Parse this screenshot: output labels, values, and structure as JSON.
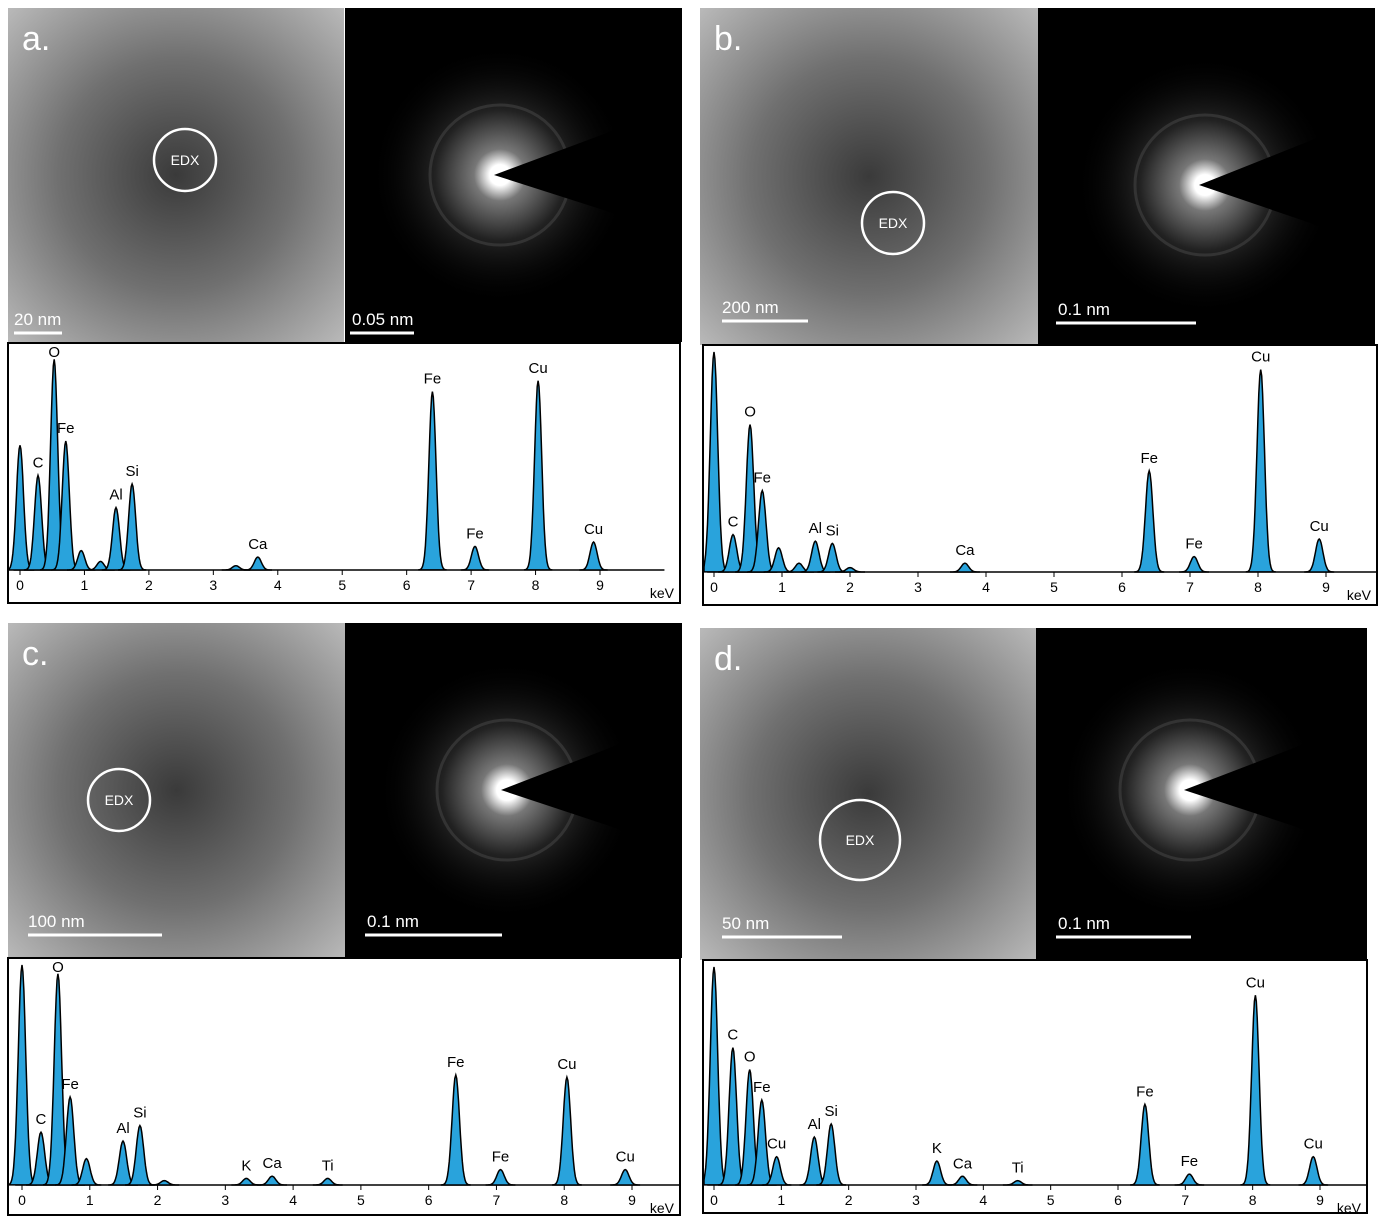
{
  "chart_data": [
    {
      "type": "spectrum",
      "panel": "a.",
      "edx": "EDX",
      "tem_scale": "20 nm",
      "saed_scale": "0.05 nm",
      "x_label": "keV",
      "color": "#29a3dc",
      "xlim": [
        -0.1,
        10
      ],
      "xticks": [
        0,
        1,
        2,
        3,
        4,
        5,
        6,
        7,
        8,
        9
      ],
      "ylim": [
        0,
        100
      ],
      "labels": [
        null,
        "C",
        "O",
        "Fe",
        null,
        null,
        "Al",
        "Si",
        null,
        "Ca",
        "Fe",
        "Fe",
        "Cu",
        "Cu"
      ],
      "x": [
        0,
        0.28,
        0.53,
        0.71,
        0.95,
        1.25,
        1.49,
        1.74,
        3.35,
        3.69,
        6.4,
        7.06,
        8.04,
        8.9
      ],
      "values": [
        58,
        44,
        98,
        60,
        9,
        4,
        29,
        40,
        2,
        6,
        83,
        11,
        88,
        13
      ]
    },
    {
      "type": "spectrum",
      "panel": "b.",
      "edx": "EDX",
      "tem_scale": "200 nm",
      "saed_scale": "0.1 nm",
      "x_label": "keV",
      "color": "#29a3dc",
      "xlim": [
        -0.1,
        10
      ],
      "xticks": [
        0,
        1,
        2,
        3,
        4,
        5,
        6,
        7,
        8,
        9
      ],
      "ylim": [
        0,
        100
      ],
      "labels": [
        null,
        "C",
        "O",
        "Fe",
        null,
        null,
        "Al",
        "Si",
        null,
        "Ca",
        "Fe",
        "Fe",
        "Cu",
        "Cu"
      ],
      "x": [
        0,
        0.28,
        0.53,
        0.71,
        0.95,
        1.25,
        1.49,
        1.74,
        2.0,
        3.69,
        6.4,
        7.06,
        8.04,
        8.9
      ],
      "values": [
        100,
        17,
        67,
        37,
        11,
        4,
        14,
        13,
        2,
        4,
        46,
        7,
        92,
        15
      ]
    },
    {
      "type": "spectrum",
      "panel": "c.",
      "edx": "EDX",
      "tem_scale": "100 nm",
      "saed_scale": "0.1 nm",
      "x_label": "keV",
      "color": "#29a3dc",
      "xlim": [
        -0.1,
        10
      ],
      "xticks": [
        0,
        1,
        2,
        3,
        4,
        5,
        6,
        7,
        8,
        9
      ],
      "ylim": [
        0,
        100
      ],
      "labels": [
        null,
        "C",
        "O",
        "Fe",
        null,
        "Al",
        "Si",
        null,
        "K",
        "Ca",
        "Ti",
        "Fe",
        "Fe",
        "Cu",
        "Cu"
      ],
      "x": [
        0,
        0.28,
        0.53,
        0.71,
        0.95,
        1.49,
        1.74,
        2.1,
        3.31,
        3.69,
        4.51,
        6.4,
        7.06,
        8.04,
        8.9
      ],
      "values": [
        100,
        24,
        96,
        40,
        12,
        20,
        27,
        2,
        3,
        4,
        3,
        50,
        7,
        49,
        7
      ]
    },
    {
      "type": "spectrum",
      "panel": "d.",
      "edx": "EDX",
      "tem_scale": "50 nm",
      "saed_scale": "0.1 nm",
      "x_label": "keV",
      "color": "#29a3dc",
      "xlim": [
        -0.1,
        10
      ],
      "xticks": [
        0,
        1,
        2,
        3,
        4,
        5,
        6,
        7,
        8,
        9
      ],
      "ylim": [
        0,
        100
      ],
      "labels": [
        null,
        "C",
        "O",
        "Fe",
        "Cu",
        "Al",
        "Si",
        "K",
        "Ca",
        "Ti",
        "Fe",
        "Fe",
        "Cu",
        "Cu"
      ],
      "x": [
        0,
        0.28,
        0.53,
        0.71,
        0.93,
        1.49,
        1.74,
        3.31,
        3.69,
        4.51,
        6.4,
        7.06,
        8.04,
        8.9
      ],
      "values": [
        100,
        63,
        53,
        39,
        13,
        22,
        28,
        11,
        4,
        2,
        37,
        5,
        87,
        13
      ]
    }
  ]
}
